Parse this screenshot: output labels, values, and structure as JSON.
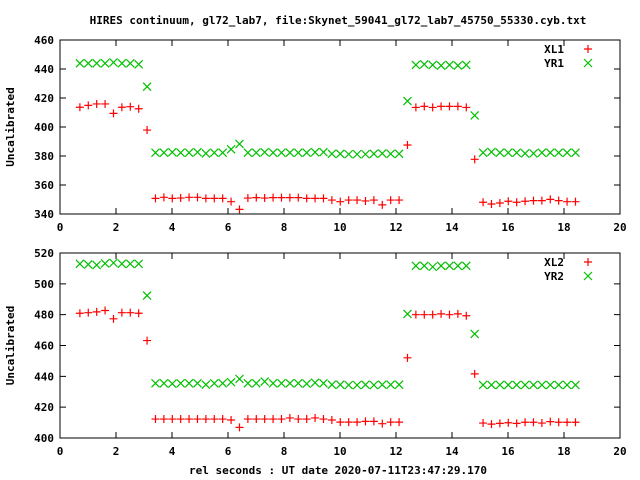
{
  "chart_data": {
    "title": "HIRES continuum, gl72_lab7, file:Skynet_59041_gl72_lab7_45750_55330.cyb.txt",
    "xlabel": "rel seconds : UT date 2020-07-11T23:47:29.170",
    "x": [
      0.71,
      1.01,
      1.31,
      1.61,
      1.91,
      2.21,
      2.51,
      2.81,
      3.11,
      3.41,
      3.71,
      4.01,
      4.31,
      4.61,
      4.91,
      5.21,
      5.51,
      5.81,
      6.11,
      6.41,
      6.71,
      7.01,
      7.31,
      7.61,
      7.91,
      8.21,
      8.51,
      8.81,
      9.11,
      9.41,
      9.71,
      10.01,
      10.31,
      10.61,
      10.91,
      11.21,
      11.51,
      11.81,
      12.11,
      12.41,
      12.71,
      13.01,
      13.31,
      13.61,
      13.91,
      14.21,
      14.51,
      14.81,
      15.11,
      15.41,
      15.71,
      16.01,
      16.31,
      16.61,
      16.91,
      17.21,
      17.51,
      17.81,
      18.11,
      18.41
    ],
    "panels": [
      {
        "type": "scatter",
        "ylabel": "Uncalibrated",
        "xlim": [
          0,
          20
        ],
        "ylim": [
          340,
          460
        ],
        "xticks": [
          "0",
          "2",
          "4",
          "6",
          "8",
          "10",
          "12",
          "14",
          "16",
          "18",
          "20"
        ],
        "yticks": [
          "340",
          "360",
          "380",
          "400",
          "420",
          "440",
          "460"
        ],
        "legend": "top-right",
        "series": [
          {
            "name": "XL1",
            "marker": "plus",
            "color": "#ff0000",
            "values": [
              413.6,
              414.9,
              415.9,
              415.9,
              409.4,
              413.6,
              414,
              412.6,
              397.9,
              350.8,
              351.5,
              350.8,
              351,
              351.5,
              351.5,
              350.8,
              350.8,
              350.8,
              348.5,
              343.2,
              351,
              351.3,
              351,
              351.3,
              351.3,
              351.3,
              351.3,
              350.8,
              350.8,
              350.8,
              349.6,
              348.5,
              349.6,
              349.6,
              349,
              349.6,
              346.3,
              349.6,
              349.6,
              387.6,
              413.5,
              414.2,
              413.5,
              414.2,
              414.2,
              414.2,
              413.5,
              377.7,
              348.1,
              346.9,
              347.6,
              348.8,
              348.1,
              348.8,
              349.2,
              349.2,
              350.1,
              349.2,
              348.5,
              348.5
            ]
          },
          {
            "name": "YR1",
            "marker": "cross",
            "color": "#00c000",
            "values": [
              443.9,
              443.9,
              443.9,
              443.9,
              444.5,
              443.9,
              443.9,
              443.2,
              427.8,
              382.3,
              382.3,
              382.6,
              382.3,
              382.3,
              382.6,
              381.8,
              382.3,
              382.3,
              384.6,
              388.3,
              382.3,
              382.3,
              382.6,
              382.3,
              382.3,
              382.3,
              382.3,
              382.3,
              382.6,
              382.6,
              381.5,
              381.5,
              381.2,
              381.2,
              381.2,
              381.5,
              381.8,
              381.5,
              381.5,
              417.9,
              442.8,
              443.2,
              442.8,
              442.4,
              442.8,
              442.4,
              442.8,
              408,
              382.3,
              382.8,
              382.3,
              382.3,
              382.3,
              381.8,
              381.8,
              382.3,
              382.3,
              382.3,
              382.3,
              382.3
            ]
          }
        ]
      },
      {
        "type": "scatter",
        "ylabel": "Uncalibrated",
        "xlim": [
          0,
          20
        ],
        "ylim": [
          400,
          520
        ],
        "xticks": [
          "0",
          "2",
          "4",
          "6",
          "8",
          "10",
          "12",
          "14",
          "16",
          "18",
          "20"
        ],
        "yticks": [
          "400",
          "420",
          "440",
          "460",
          "480",
          "500",
          "520"
        ],
        "legend": "top-right",
        "series": [
          {
            "name": "XL2",
            "marker": "plus",
            "color": "#ff0000",
            "values": [
              480.9,
              481.3,
              481.8,
              482.7,
              477.3,
              481.3,
              481.3,
              480.9,
              463.2,
              412.3,
              412.3,
              412.3,
              412.3,
              412.3,
              412.3,
              412.3,
              412.3,
              412.3,
              411.7,
              406.9,
              412.3,
              412.3,
              412.3,
              412.3,
              412.3,
              413,
              412.3,
              412.3,
              413,
              412.3,
              411.7,
              410.3,
              410.3,
              410.3,
              410.8,
              410.8,
              409.3,
              410.3,
              410.3,
              452,
              480,
              480,
              480,
              480.5,
              480,
              480.5,
              479.3,
              441.6,
              409.7,
              409,
              409.5,
              409.9,
              409.5,
              410.2,
              410.2,
              409.7,
              410.6,
              410.2,
              410.2,
              410.2
            ]
          },
          {
            "name": "YR2",
            "marker": "cross",
            "color": "#00c000",
            "values": [
              513,
              512.6,
              512.2,
              513.2,
              513.6,
              513,
              513,
              513,
              492.4,
              435.5,
              435.5,
              435.2,
              435.5,
              435.5,
              435.5,
              434.6,
              435.5,
              435.5,
              436.2,
              438.3,
              435.5,
              435.5,
              436.6,
              435.5,
              435.5,
              435.5,
              435.5,
              435.2,
              435.9,
              435.5,
              434.6,
              434.6,
              434.3,
              434.3,
              434.6,
              434.3,
              434.6,
              434.6,
              434.6,
              480.5,
              511.7,
              511.7,
              511,
              511.7,
              511.7,
              511.7,
              511.7,
              467.5,
              434.4,
              434.4,
              434.4,
              434.4,
              434.4,
              434.4,
              434.4,
              434.4,
              434.4,
              434.4,
              434.4,
              434.4
            ]
          }
        ]
      }
    ]
  }
}
